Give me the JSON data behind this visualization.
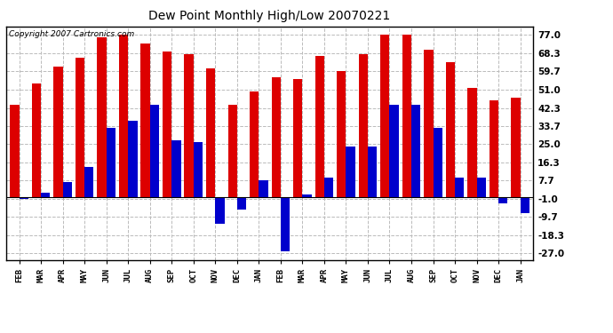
{
  "title": "Dew Point Monthly High/Low 20070221",
  "copyright": "Copyright 2007 Cartronics.com",
  "months": [
    "FEB",
    "MAR",
    "APR",
    "MAY",
    "JUN",
    "JUL",
    "AUG",
    "SEP",
    "OCT",
    "NOV",
    "DEC",
    "JAN",
    "FEB",
    "MAR",
    "APR",
    "MAY",
    "JUN",
    "JUL",
    "AUG",
    "SEP",
    "OCT",
    "NOV",
    "DEC",
    "JAN"
  ],
  "highs": [
    44,
    54,
    62,
    66,
    76,
    77,
    73,
    69,
    68,
    61,
    44,
    50,
    57,
    56,
    67,
    60,
    68,
    77,
    77,
    70,
    64,
    52,
    46,
    47
  ],
  "lows": [
    -1,
    2,
    7,
    14,
    33,
    36,
    44,
    27,
    26,
    -13,
    -6,
    8,
    -26,
    1,
    9,
    24,
    24,
    44,
    44,
    33,
    9,
    9,
    -3,
    -8
  ],
  "high_color": "#dd0000",
  "low_color": "#0000cc",
  "background_color": "#ffffff",
  "grid_color": "#bbbbbb",
  "ytick_values": [
    -27.0,
    -18.3,
    -9.7,
    -1.0,
    7.7,
    16.3,
    25.0,
    33.7,
    42.3,
    51.0,
    59.7,
    68.3,
    77.0
  ],
  "ylim_min": -30,
  "ylim_max": 81,
  "bar_width": 0.42,
  "title_fontsize": 10,
  "xtick_fontsize": 6.5,
  "ytick_fontsize": 7.5,
  "copyright_fontsize": 6.5
}
